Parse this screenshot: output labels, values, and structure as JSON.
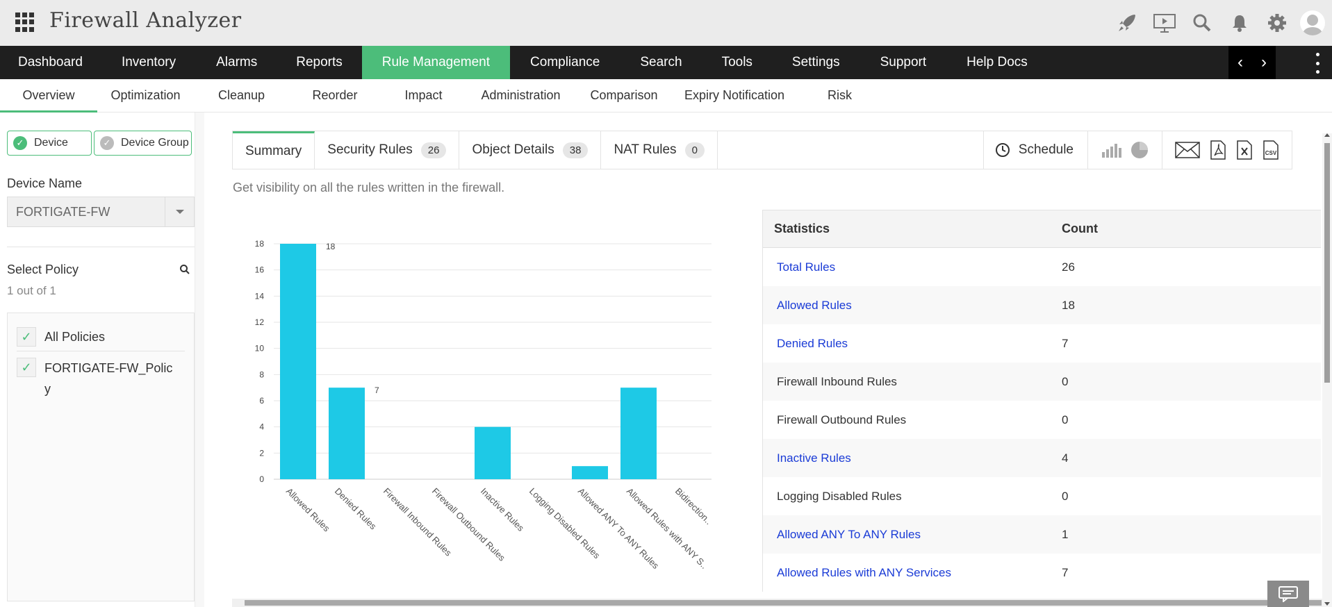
{
  "app": {
    "title": "Firewall Analyzer"
  },
  "header_icons": [
    "rocket-icon",
    "presentation-icon",
    "search-icon",
    "bell-icon",
    "gear-icon",
    "user-icon"
  ],
  "main_nav": [
    {
      "label": "Dashboard",
      "active": false
    },
    {
      "label": "Inventory",
      "active": false
    },
    {
      "label": "Alarms",
      "active": false
    },
    {
      "label": "Reports",
      "active": false
    },
    {
      "label": "Rule Management",
      "active": true
    },
    {
      "label": "Compliance",
      "active": false
    },
    {
      "label": "Search",
      "active": false
    },
    {
      "label": "Tools",
      "active": false
    },
    {
      "label": "Settings",
      "active": false
    },
    {
      "label": "Support",
      "active": false
    },
    {
      "label": "Help Docs",
      "active": false
    }
  ],
  "sub_nav": [
    {
      "label": "Overview",
      "active": true
    },
    {
      "label": "Optimization",
      "active": false
    },
    {
      "label": "Cleanup",
      "active": false
    },
    {
      "label": "Reorder",
      "active": false
    },
    {
      "label": "Impact",
      "active": false
    },
    {
      "label": "Administration",
      "active": false
    },
    {
      "label": "Comparison",
      "active": false
    },
    {
      "label": "Expiry Notification",
      "active": false
    },
    {
      "label": "Risk",
      "active": false
    }
  ],
  "left": {
    "device_btn": "Device",
    "device_group_btn": "Device Group",
    "device_name_label": "Device Name",
    "device_name_value": "FORTIGATE-FW",
    "select_policy_label": "Select Policy",
    "policy_count": "1 out of 1",
    "policies": [
      "All Policies",
      "FORTIGATE-FW_Polic",
      "y"
    ]
  },
  "tabs": {
    "summary": "Summary",
    "security_rules": "Security Rules",
    "security_rules_count": "26",
    "object_details": "Object Details",
    "object_details_count": "38",
    "nat_rules": "NAT Rules",
    "nat_rules_count": "0",
    "schedule": "Schedule"
  },
  "description": "Get visibility on all the rules written in the firewall.",
  "colors": {
    "accent": "#4cbd7a",
    "bar": "#1ec9e6",
    "link": "#1a3bd6",
    "nav_bg": "#1f1f1f"
  },
  "chart_data": {
    "type": "bar",
    "categories": [
      "Allowed Rules",
      "Denied Rules",
      "Firewall Inbound Rules",
      "Firewall Outbound Rules",
      "Inactive Rules",
      "Logging Disabled Rules",
      "Allowed ANY To ANY Rules",
      "Allowed Rules with ANY S..",
      "Bidirection.."
    ],
    "values": [
      18,
      7,
      0,
      0,
      4,
      0,
      1,
      7,
      0
    ],
    "data_labels": {
      "0": "18",
      "1": "7"
    },
    "yticks": [
      "0",
      "2",
      "4",
      "6",
      "8",
      "10",
      "12",
      "14",
      "16",
      "18"
    ],
    "ylim": [
      0,
      18
    ],
    "grid": true
  },
  "stats": {
    "headers": [
      "Statistics",
      "Count"
    ],
    "rows": [
      {
        "name": "Total Rules",
        "count": "26",
        "link": true
      },
      {
        "name": "Allowed Rules",
        "count": "18",
        "link": true
      },
      {
        "name": "Denied Rules",
        "count": "7",
        "link": true
      },
      {
        "name": "Firewall Inbound Rules",
        "count": "0",
        "link": false
      },
      {
        "name": "Firewall Outbound Rules",
        "count": "0",
        "link": false
      },
      {
        "name": "Inactive Rules",
        "count": "4",
        "link": true
      },
      {
        "name": "Logging Disabled Rules",
        "count": "0",
        "link": false
      },
      {
        "name": "Allowed ANY To ANY Rules",
        "count": "1",
        "link": true
      },
      {
        "name": "Allowed Rules with ANY Services",
        "count": "7",
        "link": true
      }
    ]
  }
}
